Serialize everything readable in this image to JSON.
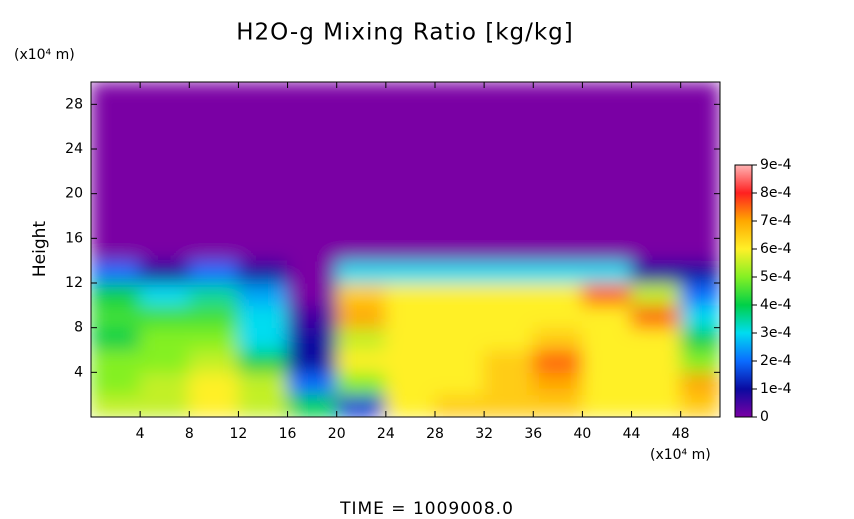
{
  "chart_data": {
    "type": "heatmap",
    "title": "H2O-g Mixing Ratio [kg/kg]",
    "ylabel": "Height",
    "xunit": "(x10⁴ m)",
    "yunit": "(x10⁴ m)",
    "footer": "TIME  =  1009008.0",
    "x": [
      0,
      4,
      8,
      12,
      16,
      20,
      24,
      28,
      32,
      36,
      40,
      44,
      48,
      51.2
    ],
    "y": [
      0,
      2,
      4,
      6,
      8,
      10,
      12,
      14,
      16,
      18,
      20,
      22,
      24,
      26,
      28,
      30
    ],
    "values": [
      [
        0.00055,
        0.00055,
        0.0006,
        0.00055,
        0.0004,
        0.00015,
        0.0006,
        0.00065,
        0.00065,
        0.00065,
        0.0006,
        0.0006,
        0.00065
      ],
      [
        0.0005,
        0.00055,
        0.0006,
        0.00055,
        0.0002,
        0.0005,
        0.0006,
        0.0006,
        0.00065,
        0.0007,
        0.0006,
        0.0006,
        0.0007
      ],
      [
        0.0005,
        0.0005,
        0.00055,
        0.0004,
        0.0001,
        0.0006,
        0.0006,
        0.0006,
        0.00065,
        0.00075,
        0.0006,
        0.0006,
        0.0005
      ],
      [
        0.0004,
        0.0005,
        0.0005,
        0.0003,
        0.0001,
        0.00055,
        0.0006,
        0.0006,
        0.0006,
        0.00065,
        0.0006,
        0.0006,
        0.0004
      ],
      [
        0.00045,
        0.00045,
        0.00045,
        0.0003,
        5e-05,
        0.0007,
        0.0006,
        0.0006,
        0.0006,
        0.0006,
        0.0006,
        0.00075,
        0.0003
      ],
      [
        0.0004,
        0.0003,
        0.00035,
        0.00025,
        0,
        0.00065,
        0.0006,
        0.0006,
        0.0006,
        0.0006,
        0.00075,
        0.00055,
        0.0002
      ],
      [
        0.0002,
        0.0001,
        0.0002,
        0.0001,
        0,
        0.0003,
        0.0003,
        0.0003,
        0.0003,
        0.0003,
        0.0003,
        0.0001,
        0.0001
      ],
      [
        0,
        0,
        0,
        0,
        0,
        0,
        0,
        0,
        0,
        0,
        0,
        0,
        0
      ],
      [
        0,
        0,
        0,
        0,
        0,
        0,
        0,
        0,
        0,
        0,
        0,
        0,
        0
      ],
      [
        0,
        0,
        0,
        0,
        0,
        0,
        0,
        0,
        0,
        0,
        0,
        0,
        0
      ],
      [
        0,
        0,
        0,
        0,
        0,
        0,
        0,
        0,
        0,
        0,
        0,
        0,
        0
      ],
      [
        0,
        0,
        0,
        0,
        0,
        0,
        0,
        0,
        0,
        0,
        0,
        0,
        0
      ],
      [
        0,
        0,
        0,
        0,
        0,
        0,
        0,
        0,
        0,
        0,
        0,
        0,
        0
      ],
      [
        0,
        0,
        0,
        0,
        0,
        0,
        0,
        0,
        0,
        0,
        0,
        0,
        0
      ],
      [
        0,
        0,
        0,
        0,
        0,
        0,
        0,
        0,
        0,
        0,
        0,
        0,
        0
      ]
    ],
    "xlim": [
      0,
      51.2
    ],
    "ylim": [
      0,
      30
    ],
    "xticks": [
      4,
      8,
      12,
      16,
      20,
      24,
      28,
      32,
      36,
      40,
      44,
      48
    ],
    "yticks": [
      4,
      8,
      12,
      16,
      20,
      24,
      28
    ],
    "zlim": [
      0,
      0.0009
    ],
    "zticks": [
      0,
      {
        "value": 0.0001,
        "label": "1e-4"
      },
      {
        "value": 0.0002,
        "label": "2e-4"
      },
      {
        "value": 0.0003,
        "label": "3e-4"
      },
      {
        "value": 0.0004,
        "label": "4e-4"
      },
      {
        "value": 0.0005,
        "label": "5e-4"
      },
      {
        "value": 0.0006,
        "label": "6e-4"
      },
      {
        "value": 0.0007,
        "label": "7e-4"
      },
      {
        "value": 0.0008,
        "label": "8e-4"
      },
      {
        "value": 0.0009,
        "label": "9e-4"
      }
    ],
    "colors": [
      "#7a00a4",
      "#0a0aa0",
      "#0a6cff",
      "#00dcf0",
      "#00d048",
      "#84f024",
      "#fff028",
      "#ffa800",
      "#ff2020",
      "#ffb4b4"
    ]
  }
}
